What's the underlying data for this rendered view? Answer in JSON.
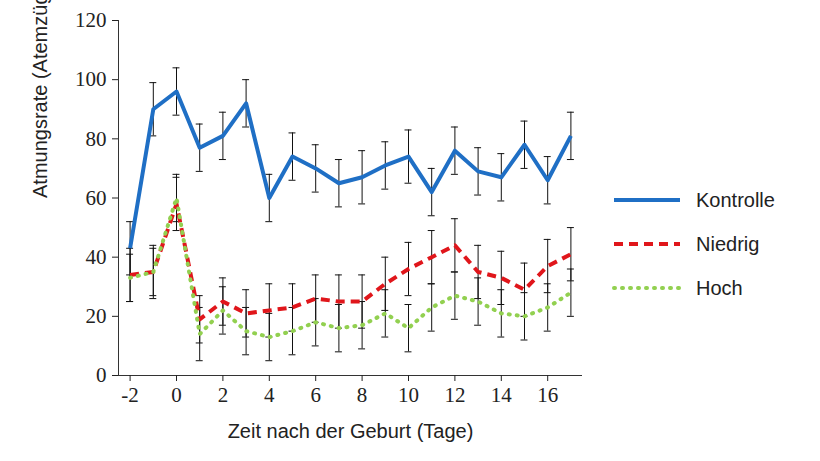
{
  "chart_data": {
    "type": "line",
    "x_label": "Zeit nach der Geburt (Tage)",
    "y_label": "Atmungsrate (Atemzüge/min)",
    "x": [
      -2,
      -1,
      0,
      1,
      2,
      3,
      4,
      5,
      6,
      7,
      8,
      9,
      10,
      11,
      12,
      13,
      14,
      15,
      16,
      17
    ],
    "xlim": [
      -2.5,
      17.5
    ],
    "xticks": [
      -2,
      0,
      2,
      4,
      6,
      8,
      10,
      12,
      14,
      16
    ],
    "ylim": [
      0,
      120
    ],
    "yticks": [
      0,
      20,
      40,
      60,
      80,
      100,
      120
    ],
    "grid": false,
    "legend": "right",
    "series": [
      {
        "name": "Kontrolle",
        "color": "#1f6fc5",
        "line_style": "solid",
        "values": [
          43,
          90,
          96,
          77,
          81,
          92,
          60,
          74,
          70,
          65,
          67,
          71,
          74,
          62,
          76,
          69,
          67,
          78,
          66,
          81
        ],
        "errors": [
          9,
          9,
          8,
          8,
          8,
          8,
          8,
          8,
          8,
          8,
          9,
          8,
          9,
          8,
          8,
          8,
          8,
          8,
          8,
          8
        ]
      },
      {
        "name": "Niedrig",
        "color": "#e0161b",
        "line_style": "dashed",
        "values": [
          34,
          35,
          58,
          19,
          25,
          21,
          22,
          23,
          26,
          25,
          25,
          31,
          36,
          40,
          44,
          35,
          33,
          29,
          37,
          41
        ],
        "errors": [
          9,
          9,
          9,
          8,
          8,
          8,
          9,
          8,
          8,
          9,
          9,
          9,
          9,
          9,
          9,
          9,
          9,
          9,
          9,
          9
        ]
      },
      {
        "name": "Hoch",
        "color": "#92d050",
        "line_style": "dotted",
        "values": [
          33,
          35,
          60,
          14,
          22,
          15,
          13,
          15,
          18,
          16,
          17,
          21,
          16,
          23,
          27,
          25,
          21,
          20,
          23,
          28
        ],
        "errors": [
          8,
          8,
          8,
          9,
          8,
          8,
          8,
          8,
          8,
          8,
          8,
          8,
          8,
          8,
          8,
          8,
          8,
          8,
          8,
          8
        ]
      }
    ]
  }
}
